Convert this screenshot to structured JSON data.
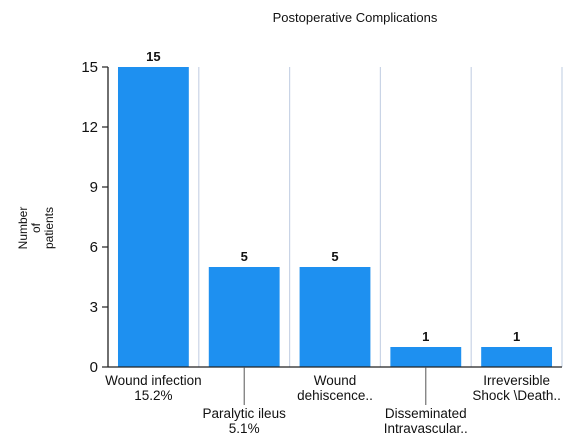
{
  "chart_data": {
    "type": "bar",
    "title": "Postoperative Complications",
    "xlabel": "",
    "ylabel_lines": [
      "Number",
      "of",
      "patients"
    ],
    "categories": [
      [
        "Wound infection",
        "15.2%"
      ],
      [
        "Paralytic ileus",
        "5.1%"
      ],
      [
        "Wound",
        "dehiscence.."
      ],
      [
        "Disseminated",
        "Intravascular.."
      ],
      [
        "Irreversible",
        "Shock \\Death.."
      ]
    ],
    "values": [
      15,
      5,
      5,
      1,
      1
    ],
    "data_labels": [
      "15",
      "5",
      "5",
      "1",
      "1"
    ],
    "yticks": [
      0,
      3,
      6,
      9,
      12,
      15
    ],
    "ylim": [
      0,
      15
    ],
    "grid": "vertical",
    "colors": {
      "bar": "#1e90f0",
      "grid": "#c9d4e6",
      "axis": "#222222"
    }
  }
}
